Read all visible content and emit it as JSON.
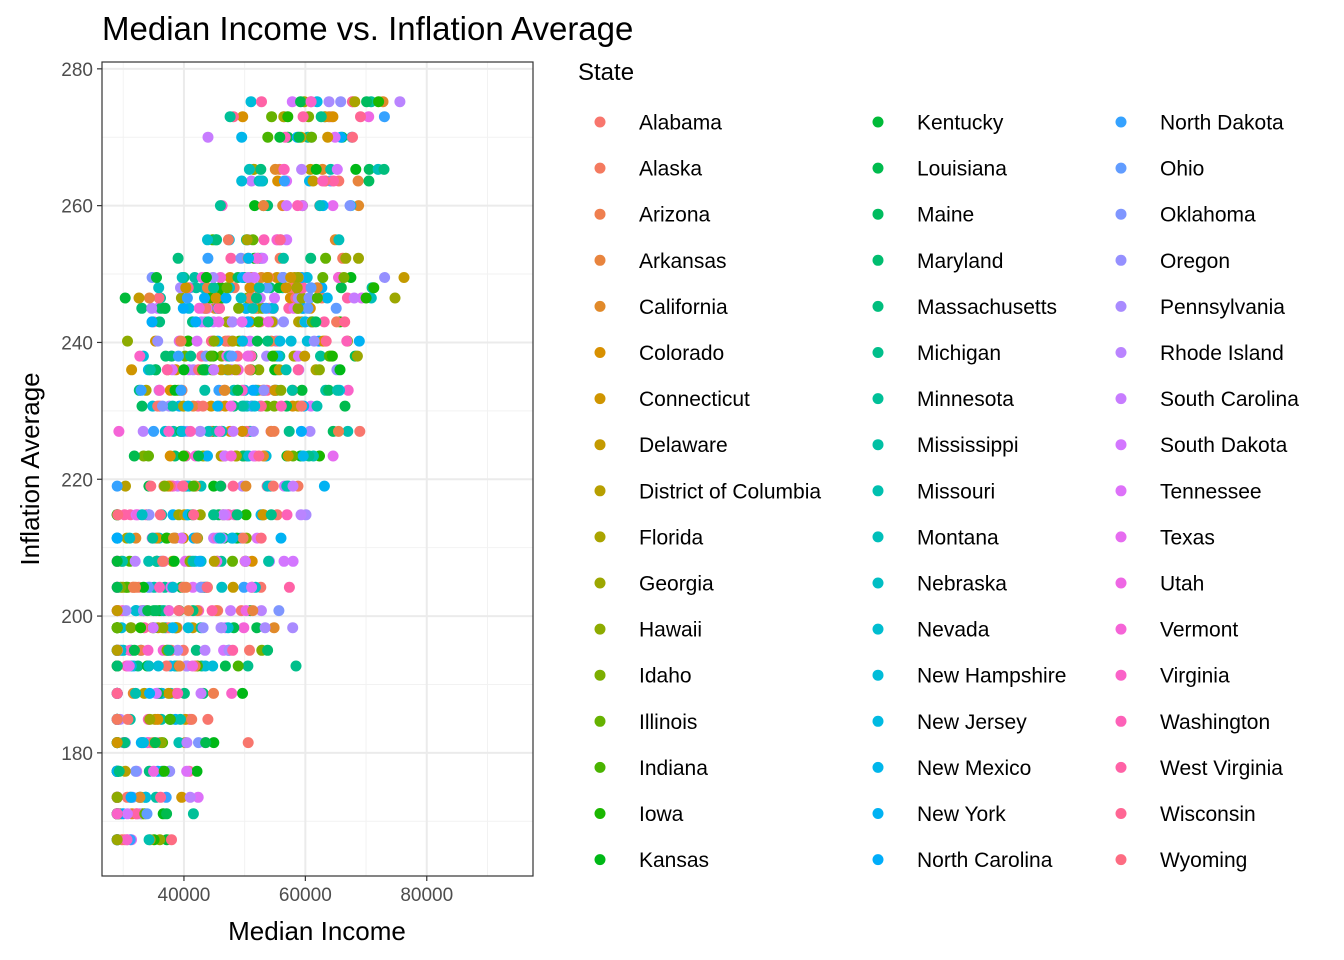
{
  "chart_data": {
    "type": "scatter",
    "title": "Median Income vs. Inflation Average",
    "xlabel": "Median Income",
    "ylabel": "Inflation Average",
    "xlim": [
      26500,
      97500
    ],
    "ylim": [
      162,
      281
    ],
    "x_ticks": [
      40000,
      60000,
      80000
    ],
    "y_ticks": [
      180,
      200,
      220,
      240,
      260,
      280
    ],
    "x_minor_ticks": [
      30000,
      50000,
      70000,
      90000
    ],
    "y_minor_ticks": [
      170,
      190,
      210,
      230,
      250,
      270
    ],
    "grid": true,
    "theme": "bw",
    "legend": {
      "title": "State",
      "placement": "right",
      "columns": 3
    },
    "inflation_levels": [
      167.3,
      171.1,
      173.5,
      177.3,
      181.5,
      184.9,
      188.7,
      192.7,
      195.0,
      198.3,
      200.8,
      204.2,
      208.0,
      211.4,
      214.8,
      219.0,
      223.4,
      227.0,
      230.7,
      233.0,
      236.0,
      238.0,
      240.2,
      243.0,
      245.0,
      246.5,
      248.0,
      249.5,
      252.3,
      255.0,
      260.0,
      263.6,
      265.3,
      270.0,
      273.0,
      275.2
    ],
    "series": [
      {
        "name": "Alabama",
        "color": "#F8766D"
      },
      {
        "name": "Alaska",
        "color": "#F47A5F"
      },
      {
        "name": "Arizona",
        "color": "#EF7F4F"
      },
      {
        "name": "Arkansas",
        "color": "#E8843E"
      },
      {
        "name": "California",
        "color": "#E18A2A"
      },
      {
        "name": "Colorado",
        "color": "#D89000"
      },
      {
        "name": "Connecticut",
        "color": "#CF9500"
      },
      {
        "name": "Delaware",
        "color": "#C49A00"
      },
      {
        "name": "District of Columbia",
        "color": "#B79F00"
      },
      {
        "name": "Florida",
        "color": "#AAA400"
      },
      {
        "name": "Georgia",
        "color": "#9CA700"
      },
      {
        "name": "Hawaii",
        "color": "#8DAB00"
      },
      {
        "name": "Idaho",
        "color": "#7CAE00"
      },
      {
        "name": "Illinois",
        "color": "#66B200"
      },
      {
        "name": "Indiana",
        "color": "#4AB400"
      },
      {
        "name": "Iowa",
        "color": "#1BB700"
      },
      {
        "name": "Kansas",
        "color": "#00B816"
      },
      {
        "name": "Kentucky",
        "color": "#00BA38"
      },
      {
        "name": "Louisiana",
        "color": "#00BB4E"
      },
      {
        "name": "Maine",
        "color": "#00BC5F"
      },
      {
        "name": "Maryland",
        "color": "#00BD6F"
      },
      {
        "name": "Massachusetts",
        "color": "#00BE7D"
      },
      {
        "name": "Michigan",
        "color": "#00BF8B"
      },
      {
        "name": "Minnesota",
        "color": "#00C098"
      },
      {
        "name": "Mississippi",
        "color": "#00C0A4"
      },
      {
        "name": "Missouri",
        "color": "#00C0AF"
      },
      {
        "name": "Montana",
        "color": "#00BFBA"
      },
      {
        "name": "Nebraska",
        "color": "#00BEC4"
      },
      {
        "name": "Nevada",
        "color": "#00BDD0"
      },
      {
        "name": "New Hampshire",
        "color": "#00BCD9"
      },
      {
        "name": "New Jersey",
        "color": "#00BAE2"
      },
      {
        "name": "New Mexico",
        "color": "#00B6EB"
      },
      {
        "name": "New York",
        "color": "#00B2F3"
      },
      {
        "name": "North Carolina",
        "color": "#00ADFA"
      },
      {
        "name": "North Dakota",
        "color": "#35A2FF"
      },
      {
        "name": "Ohio",
        "color": "#619CFF"
      },
      {
        "name": "Oklahoma",
        "color": "#7F96FF"
      },
      {
        "name": "Oregon",
        "color": "#9590FF"
      },
      {
        "name": "Pennsylvania",
        "color": "#A98BFF"
      },
      {
        "name": "Rhode Island",
        "color": "#BA84FF"
      },
      {
        "name": "South Carolina",
        "color": "#C77CFF"
      },
      {
        "name": "South Dakota",
        "color": "#D376FF"
      },
      {
        "name": "Tennessee",
        "color": "#DD71F9"
      },
      {
        "name": "Texas",
        "color": "#E66CF0"
      },
      {
        "name": "Utah",
        "color": "#EE67E4"
      },
      {
        "name": "Vermont",
        "color": "#F564D7"
      },
      {
        "name": "Virginia",
        "color": "#FA62C8"
      },
      {
        "name": "Washington",
        "color": "#FD61B8"
      },
      {
        "name": "West Virginia",
        "color": "#FF62A6"
      },
      {
        "name": "Wisconsin",
        "color": "#FF6694"
      },
      {
        "name": "Wyoming",
        "color": "#FD6C82"
      }
    ]
  }
}
